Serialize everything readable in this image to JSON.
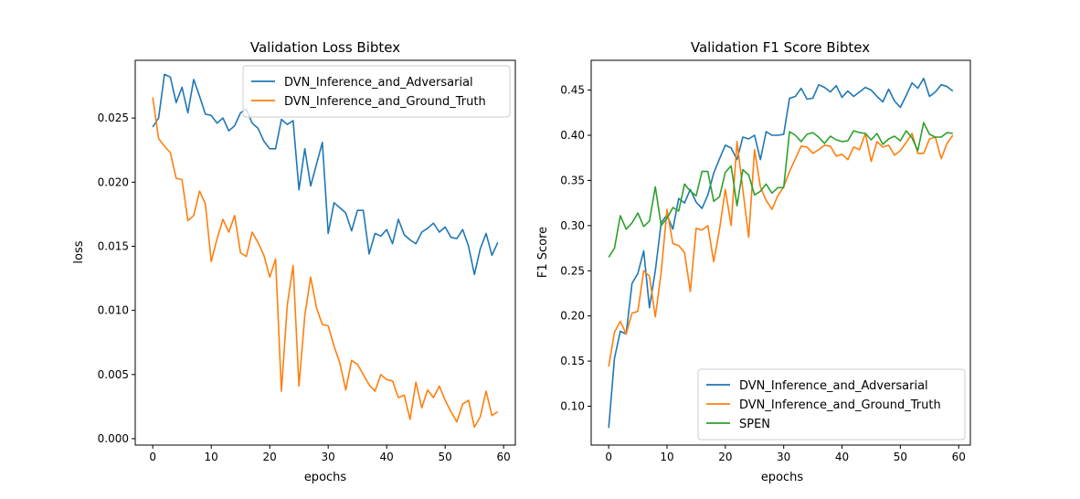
{
  "colors": {
    "blue": "#1f77b4",
    "orange": "#ff7f0e",
    "green": "#2ca02c"
  },
  "chart_data": [
    {
      "type": "line",
      "title": "Validation Loss Bibtex",
      "xlabel": "epochs",
      "ylabel": "loss",
      "xlim": [
        -3,
        62
      ],
      "ylim": [
        -0.0005,
        0.0295
      ],
      "xticks": [
        0,
        10,
        20,
        30,
        40,
        50,
        60
      ],
      "yticks": [
        0.0,
        0.005,
        0.01,
        0.015,
        0.02,
        0.025
      ],
      "ytick_labels": [
        "0.000",
        "0.005",
        "0.010",
        "0.015",
        "0.020",
        "0.025"
      ],
      "grid": false,
      "legend_position": "top-right",
      "series": [
        {
          "name": "DVN_Inference_and_Adversarial",
          "color": "blue",
          "x": [
            0,
            1,
            2,
            3,
            4,
            5,
            6,
            7,
            8,
            9,
            10,
            11,
            12,
            13,
            14,
            15,
            16,
            17,
            18,
            19,
            20,
            21,
            22,
            23,
            24,
            25,
            26,
            27,
            28,
            29,
            30,
            31,
            32,
            33,
            34,
            35,
            36,
            37,
            38,
            39,
            40,
            41,
            42,
            43,
            44,
            45,
            46,
            47,
            48,
            49,
            50,
            51,
            52,
            53,
            54,
            55,
            56,
            57,
            58,
            59
          ],
          "values": [
            0.0243,
            0.025,
            0.0284,
            0.0282,
            0.0262,
            0.0274,
            0.0254,
            0.028,
            0.0267,
            0.0253,
            0.0252,
            0.0246,
            0.025,
            0.024,
            0.0244,
            0.0254,
            0.0257,
            0.0246,
            0.0242,
            0.0232,
            0.0226,
            0.0226,
            0.0249,
            0.0245,
            0.0248,
            0.0194,
            0.0226,
            0.0197,
            0.0214,
            0.0231,
            0.016,
            0.0184,
            0.018,
            0.0176,
            0.0162,
            0.0178,
            0.0178,
            0.0144,
            0.016,
            0.0158,
            0.0163,
            0.0152,
            0.0171,
            0.0159,
            0.0155,
            0.0152,
            0.0161,
            0.0164,
            0.0168,
            0.0161,
            0.0165,
            0.0157,
            0.0156,
            0.0163,
            0.015,
            0.0128,
            0.0148,
            0.016,
            0.0143,
            0.0153
          ]
        },
        {
          "name": "DVN_Inference_and_Ground_Truth",
          "color": "orange",
          "x": [
            0,
            1,
            2,
            3,
            4,
            5,
            6,
            7,
            8,
            9,
            10,
            11,
            12,
            13,
            14,
            15,
            16,
            17,
            18,
            19,
            20,
            21,
            22,
            23,
            24,
            25,
            26,
            27,
            28,
            29,
            30,
            31,
            32,
            33,
            34,
            35,
            36,
            37,
            38,
            39,
            40,
            41,
            42,
            43,
            44,
            45,
            46,
            47,
            48,
            49,
            50,
            51,
            52,
            53,
            54,
            55,
            56,
            57,
            58,
            59
          ],
          "values": [
            0.0266,
            0.0234,
            0.0228,
            0.0223,
            0.0203,
            0.0202,
            0.017,
            0.0174,
            0.0193,
            0.0183,
            0.0138,
            0.0156,
            0.0171,
            0.0161,
            0.0174,
            0.0145,
            0.0142,
            0.0161,
            0.0153,
            0.0143,
            0.0126,
            0.014,
            0.0037,
            0.0104,
            0.0135,
            0.0041,
            0.0096,
            0.0126,
            0.0102,
            0.0089,
            0.0088,
            0.0072,
            0.0059,
            0.0038,
            0.0061,
            0.0058,
            0.005,
            0.0042,
            0.0037,
            0.005,
            0.0046,
            0.0045,
            0.0032,
            0.0034,
            0.0015,
            0.0044,
            0.0024,
            0.0038,
            0.0032,
            0.0041,
            0.003,
            0.0021,
            0.0013,
            0.0027,
            0.003,
            0.0009,
            0.0017,
            0.0037,
            0.0018,
            0.0021
          ]
        }
      ]
    },
    {
      "type": "line",
      "title": "Validation F1 Score Bibtex",
      "xlabel": "epochs",
      "ylabel": "F1 Score",
      "xlim": [
        -3,
        62
      ],
      "ylim": [
        0.057,
        0.483
      ],
      "xticks": [
        0,
        10,
        20,
        30,
        40,
        50,
        60
      ],
      "yticks": [
        0.1,
        0.15,
        0.2,
        0.25,
        0.3,
        0.35,
        0.4,
        0.45
      ],
      "ytick_labels": [
        "0.10",
        "0.15",
        "0.20",
        "0.25",
        "0.30",
        "0.35",
        "0.40",
        "0.45"
      ],
      "grid": false,
      "legend_position": "bottom-right",
      "series": [
        {
          "name": "DVN_Inference_and_Adversarial",
          "color": "blue",
          "x": [
            0,
            1,
            2,
            3,
            4,
            5,
            6,
            7,
            8,
            9,
            10,
            11,
            12,
            13,
            14,
            15,
            16,
            17,
            18,
            19,
            20,
            21,
            22,
            23,
            24,
            25,
            26,
            27,
            28,
            29,
            30,
            31,
            32,
            33,
            34,
            35,
            36,
            37,
            38,
            39,
            40,
            41,
            42,
            43,
            44,
            45,
            46,
            47,
            48,
            49,
            50,
            51,
            52,
            53,
            54,
            55,
            56,
            57,
            58,
            59
          ],
          "values": [
            0.076,
            0.153,
            0.183,
            0.18,
            0.236,
            0.247,
            0.272,
            0.209,
            0.25,
            0.303,
            0.312,
            0.296,
            0.33,
            0.325,
            0.34,
            0.326,
            0.319,
            0.334,
            0.358,
            0.374,
            0.389,
            0.386,
            0.373,
            0.398,
            0.396,
            0.4,
            0.373,
            0.404,
            0.4,
            0.4,
            0.401,
            0.441,
            0.443,
            0.452,
            0.44,
            0.441,
            0.456,
            0.453,
            0.448,
            0.455,
            0.442,
            0.449,
            0.443,
            0.448,
            0.453,
            0.45,
            0.443,
            0.437,
            0.451,
            0.438,
            0.431,
            0.444,
            0.458,
            0.452,
            0.463,
            0.443,
            0.448,
            0.456,
            0.454,
            0.449
          ]
        },
        {
          "name": "DVN_Inference_and_Ground_Truth",
          "color": "orange",
          "x": [
            0,
            1,
            2,
            3,
            4,
            5,
            6,
            7,
            8,
            9,
            10,
            11,
            12,
            13,
            14,
            15,
            16,
            17,
            18,
            19,
            20,
            21,
            22,
            23,
            24,
            25,
            26,
            27,
            28,
            29,
            30,
            31,
            32,
            33,
            34,
            35,
            36,
            37,
            38,
            39,
            40,
            41,
            42,
            43,
            44,
            45,
            46,
            47,
            48,
            49,
            50,
            51,
            52,
            53,
            54,
            55,
            56,
            57,
            58,
            59
          ],
          "values": [
            0.144,
            0.182,
            0.194,
            0.18,
            0.203,
            0.205,
            0.25,
            0.244,
            0.199,
            0.248,
            0.318,
            0.28,
            0.278,
            0.27,
            0.227,
            0.297,
            0.295,
            0.3,
            0.26,
            0.296,
            0.34,
            0.3,
            0.393,
            0.34,
            0.287,
            0.384,
            0.343,
            0.328,
            0.318,
            0.333,
            0.343,
            0.36,
            0.374,
            0.388,
            0.387,
            0.38,
            0.384,
            0.389,
            0.388,
            0.377,
            0.379,
            0.373,
            0.387,
            0.384,
            0.402,
            0.371,
            0.393,
            0.387,
            0.389,
            0.378,
            0.383,
            0.392,
            0.402,
            0.38,
            0.38,
            0.396,
            0.398,
            0.374,
            0.391,
            0.4
          ]
        },
        {
          "name": "SPEN",
          "color": "green",
          "x": [
            0,
            1,
            2,
            3,
            4,
            5,
            6,
            7,
            8,
            9,
            10,
            11,
            12,
            13,
            14,
            15,
            16,
            17,
            18,
            19,
            20,
            21,
            22,
            23,
            24,
            25,
            26,
            27,
            28,
            29,
            30,
            31,
            32,
            33,
            34,
            35,
            36,
            37,
            38,
            39,
            40,
            41,
            42,
            43,
            44,
            45,
            46,
            47,
            48,
            49,
            50,
            51,
            52,
            53,
            54,
            55,
            56,
            57,
            58,
            59
          ],
          "values": [
            0.265,
            0.275,
            0.311,
            0.296,
            0.303,
            0.314,
            0.299,
            0.305,
            0.343,
            0.3,
            0.308,
            0.32,
            0.316,
            0.346,
            0.338,
            0.333,
            0.36,
            0.36,
            0.327,
            0.332,
            0.359,
            0.366,
            0.322,
            0.362,
            0.356,
            0.334,
            0.338,
            0.346,
            0.336,
            0.342,
            0.342,
            0.404,
            0.4,
            0.393,
            0.401,
            0.403,
            0.398,
            0.391,
            0.399,
            0.395,
            0.393,
            0.394,
            0.405,
            0.403,
            0.402,
            0.395,
            0.402,
            0.39,
            0.396,
            0.399,
            0.394,
            0.405,
            0.397,
            0.383,
            0.414,
            0.401,
            0.398,
            0.398,
            0.403,
            0.402
          ]
        }
      ]
    }
  ]
}
